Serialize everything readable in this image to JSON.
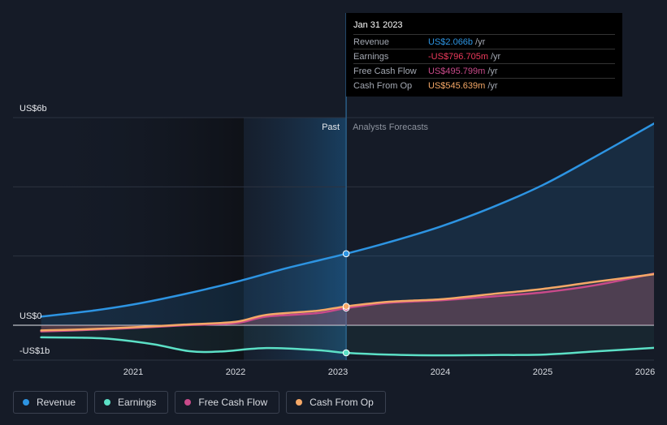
{
  "chart_data": {
    "type": "line",
    "title": "",
    "y_axis_labels": [
      "US$6b",
      "US$0",
      "-US$1b"
    ],
    "ylim": [
      -1,
      6
    ],
    "x_ticks": [
      "2021",
      "2022",
      "2023",
      "2024",
      "2025",
      "2026"
    ],
    "region_labels": {
      "past": "Past",
      "forecast": "Analysts Forecasts"
    },
    "series": [
      {
        "name": "Revenue",
        "color": "#2d94e2",
        "points": [
          [
            2020.1,
            0.25
          ],
          [
            2020.6,
            0.42
          ],
          [
            2021.0,
            0.6
          ],
          [
            2021.5,
            0.9
          ],
          [
            2022.0,
            1.25
          ],
          [
            2022.5,
            1.65
          ],
          [
            2023.08,
            2.066
          ],
          [
            2023.5,
            2.4
          ],
          [
            2024.0,
            2.85
          ],
          [
            2024.5,
            3.4
          ],
          [
            2025.0,
            4.05
          ],
          [
            2025.5,
            4.85
          ],
          [
            2026.1,
            5.85
          ]
        ]
      },
      {
        "name": "Earnings",
        "color": "#5ce0c6",
        "points": [
          [
            2020.1,
            -0.35
          ],
          [
            2020.5,
            -0.36
          ],
          [
            2020.8,
            -0.4
          ],
          [
            2021.2,
            -0.55
          ],
          [
            2021.55,
            -0.75
          ],
          [
            2021.85,
            -0.76
          ],
          [
            2022.3,
            -0.66
          ],
          [
            2022.8,
            -0.72
          ],
          [
            2023.08,
            -0.797
          ],
          [
            2023.5,
            -0.85
          ],
          [
            2024.0,
            -0.87
          ],
          [
            2024.5,
            -0.86
          ],
          [
            2025.0,
            -0.85
          ],
          [
            2025.5,
            -0.76
          ],
          [
            2026.1,
            -0.65
          ]
        ]
      },
      {
        "name": "Free Cash Flow",
        "color": "#c94a8a",
        "points": [
          [
            2020.1,
            -0.18
          ],
          [
            2020.5,
            -0.14
          ],
          [
            2021.0,
            -0.08
          ],
          [
            2021.5,
            0.0
          ],
          [
            2022.0,
            0.06
          ],
          [
            2022.3,
            0.25
          ],
          [
            2022.8,
            0.35
          ],
          [
            2023.08,
            0.496
          ],
          [
            2023.5,
            0.65
          ],
          [
            2024.0,
            0.72
          ],
          [
            2024.5,
            0.83
          ],
          [
            2025.0,
            0.95
          ],
          [
            2025.5,
            1.15
          ],
          [
            2026.1,
            1.5
          ]
        ]
      },
      {
        "name": "Cash From Op",
        "color": "#f5a867",
        "points": [
          [
            2020.1,
            -0.15
          ],
          [
            2020.5,
            -0.12
          ],
          [
            2021.0,
            -0.06
          ],
          [
            2021.5,
            0.02
          ],
          [
            2022.0,
            0.1
          ],
          [
            2022.3,
            0.3
          ],
          [
            2022.8,
            0.42
          ],
          [
            2023.08,
            0.546
          ],
          [
            2023.5,
            0.68
          ],
          [
            2024.0,
            0.75
          ],
          [
            2024.5,
            0.9
          ],
          [
            2025.0,
            1.05
          ],
          [
            2025.5,
            1.25
          ],
          [
            2026.1,
            1.48
          ]
        ]
      }
    ],
    "highlight_x": 2023.08
  },
  "tooltip": {
    "date": "Jan 31 2023",
    "rows": [
      {
        "label": "Revenue",
        "value": "US$2.066b",
        "unit": "/yr",
        "color": "#2d94e2"
      },
      {
        "label": "Earnings",
        "value": "-US$796.705m",
        "unit": "/yr",
        "color": "#ee3a5c"
      },
      {
        "label": "Free Cash Flow",
        "value": "US$495.799m",
        "unit": "/yr",
        "color": "#c94a8a"
      },
      {
        "label": "Cash From Op",
        "value": "US$545.639m",
        "unit": "/yr",
        "color": "#f5a867"
      }
    ]
  },
  "legend": [
    {
      "label": "Revenue",
      "color": "#2d94e2"
    },
    {
      "label": "Earnings",
      "color": "#5ce0c6"
    },
    {
      "label": "Free Cash Flow",
      "color": "#c94a8a"
    },
    {
      "label": "Cash From Op",
      "color": "#f5a867"
    }
  ]
}
